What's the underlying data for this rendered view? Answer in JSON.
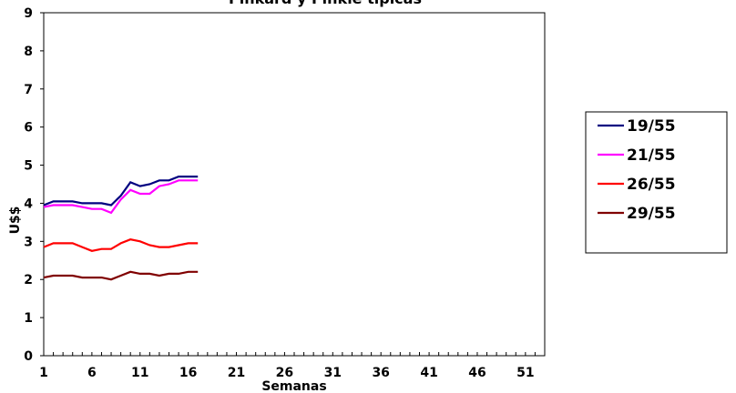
{
  "chart_data": {
    "type": "line",
    "title": "Pinkard y Pinkle tipicas",
    "xlabel": "Semanas",
    "ylabel": "U$$",
    "xlim": [
      1,
      53
    ],
    "ylim": [
      0,
      9
    ],
    "yticks": [
      "0",
      "1",
      "2",
      "3",
      "4",
      "5",
      "6",
      "7",
      "8",
      "9"
    ],
    "xticks": [
      "1",
      "6",
      "11",
      "16",
      "21",
      "26",
      "31",
      "36",
      "41",
      "46",
      "51"
    ],
    "legend_position": "right",
    "x": [
      1,
      2,
      3,
      4,
      5,
      6,
      7,
      8,
      9,
      10,
      11,
      12,
      13,
      14,
      15,
      16,
      17
    ],
    "series": [
      {
        "name": "19/55",
        "color": "#000080",
        "values": [
          3.95,
          4.05,
          4.05,
          4.05,
          4.0,
          4.0,
          4.0,
          3.95,
          4.2,
          4.55,
          4.45,
          4.5,
          4.6,
          4.6,
          4.7,
          4.7,
          4.7
        ]
      },
      {
        "name": "21/55",
        "color": "#ff00ff",
        "values": [
          3.9,
          3.95,
          3.95,
          3.95,
          3.9,
          3.85,
          3.85,
          3.75,
          4.1,
          4.35,
          4.25,
          4.25,
          4.45,
          4.5,
          4.6,
          4.6,
          4.6
        ]
      },
      {
        "name": "26/55",
        "color": "#ff0000",
        "values": [
          2.85,
          2.95,
          2.95,
          2.95,
          2.85,
          2.75,
          2.8,
          2.8,
          2.95,
          3.05,
          3.0,
          2.9,
          2.85,
          2.85,
          2.9,
          2.95,
          2.95
        ]
      },
      {
        "name": "29/55",
        "color": "#800000",
        "values": [
          2.05,
          2.1,
          2.1,
          2.1,
          2.05,
          2.05,
          2.05,
          2.0,
          2.1,
          2.2,
          2.15,
          2.15,
          2.1,
          2.15,
          2.15,
          2.2,
          2.2
        ]
      }
    ]
  }
}
